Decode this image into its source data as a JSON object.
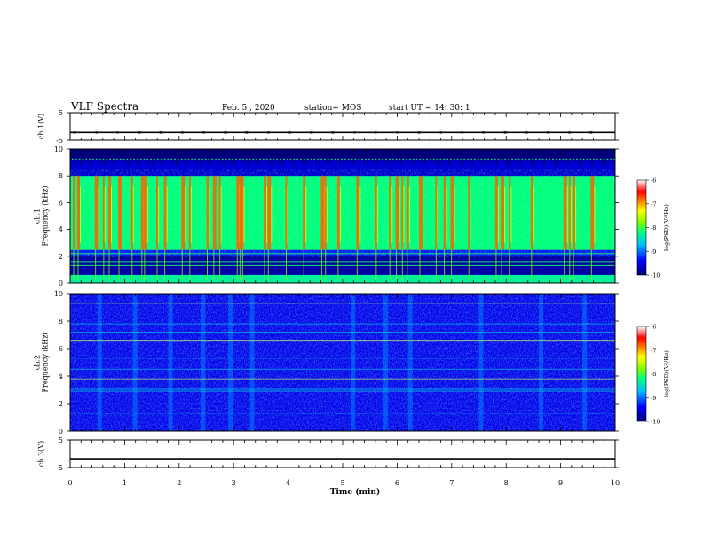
{
  "header": {
    "title": "VLF Spectra",
    "date": "Feb. 5 , 2020",
    "station": "station= MOS",
    "start": "start  UT =   14: 30: 1"
  },
  "chart_data": [
    {
      "type": "line",
      "panel": "ch1_voltage",
      "ylabel": "ch.1(V)",
      "ylim": [
        -5,
        5
      ],
      "yticks": [
        5,
        -5
      ],
      "x": [
        0,
        10
      ],
      "y": [
        -2.2,
        -2.2
      ]
    },
    {
      "type": "heatmap",
      "panel": "ch1_spectrogram",
      "ylabel": "ch.1\nFrequency (kHz)",
      "ylim": [
        0,
        10
      ],
      "yticks": [
        "0",
        "2",
        "4",
        "6",
        "8",
        "10"
      ],
      "colorbar": {
        "label": "log(PSD)(V²/Hz)",
        "range": [
          -10,
          -6
        ],
        "ticks": [
          "-6",
          "-7",
          "-8",
          "-9",
          "-10"
        ]
      },
      "bands": [
        {
          "from_khz": 9.3,
          "to_khz": 10.0,
          "log_psd": -10.0
        },
        {
          "from_khz": 8.0,
          "to_khz": 9.3,
          "log_psd": -9.6
        },
        {
          "from_khz": 2.5,
          "to_khz": 8.0,
          "log_psd": -8.2
        },
        {
          "from_khz": 0.6,
          "to_khz": 2.0,
          "log_psd": -9.8
        },
        {
          "from_khz": 0.0,
          "to_khz": 0.6,
          "log_psd": -8.3
        }
      ],
      "lines_khz": [
        9.25,
        2.5,
        2.2,
        1.6,
        1.3,
        0.3
      ],
      "bursts_min": [
        0.05,
        0.13,
        0.45,
        0.6,
        0.7,
        0.88,
        1.12,
        1.3,
        1.35,
        1.58,
        1.72,
        2.04,
        2.18,
        2.5,
        2.62,
        2.73,
        3.05,
        3.1,
        3.15,
        3.55,
        3.62,
        3.95,
        4.27,
        4.6,
        4.67,
        4.9,
        5.25,
        5.6,
        5.85,
        5.97,
        6.08,
        6.17,
        6.4,
        6.7,
        6.85,
        6.98,
        7.3,
        7.8,
        7.9,
        8.05,
        8.45,
        9.05,
        9.15,
        9.22,
        9.55
      ]
    },
    {
      "type": "heatmap",
      "panel": "ch2_spectrogram",
      "ylabel": "ch.2\nFrequency (kHz)",
      "ylim": [
        0,
        10
      ],
      "yticks": [
        "0",
        "2",
        "4",
        "6",
        "8",
        "10"
      ],
      "colorbar": {
        "label": "log(PSD)(V²/Hz)",
        "range": [
          -10,
          -6
        ],
        "ticks": [
          "-6",
          "-7",
          "-8",
          "-9",
          "-10"
        ]
      },
      "background_log_psd": -9.5,
      "lines_khz": [
        9.3,
        7.8,
        7.2,
        6.6,
        5.3,
        4.5,
        3.8,
        3.1,
        2.9,
        1.9,
        1.3
      ],
      "faint_columns_min": [
        0.5,
        1.15,
        1.8,
        2.4,
        2.9,
        3.3,
        5.15,
        5.75,
        6.2,
        7.5,
        8.6,
        9.4
      ]
    },
    {
      "type": "line",
      "panel": "ch3_voltage",
      "ylabel": "ch.3(V)",
      "ylim": [
        -5,
        5
      ],
      "yticks": [
        5,
        -5
      ],
      "x": [
        0,
        10
      ],
      "y": [
        -1.8,
        -1.8
      ]
    }
  ],
  "xaxis": {
    "label": "Time (min)",
    "range": [
      0,
      10
    ],
    "ticks": [
      "0",
      "1",
      "2",
      "3",
      "4",
      "5",
      "6",
      "7",
      "8",
      "9",
      "10"
    ]
  }
}
